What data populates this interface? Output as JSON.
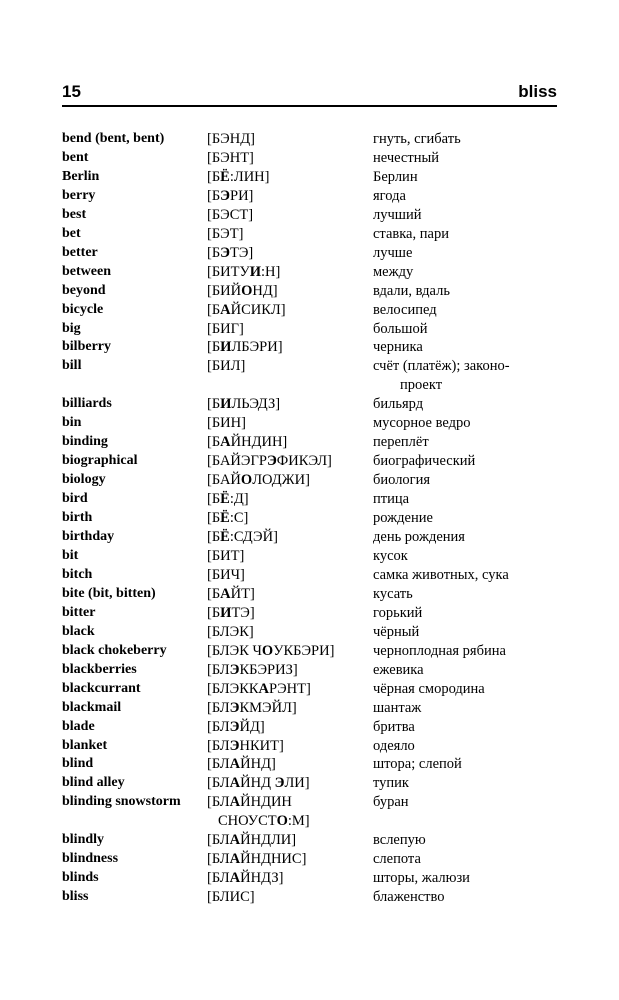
{
  "header": {
    "page_number": "15",
    "guide_word": "bliss"
  },
  "colors": {
    "text": "#000000",
    "background": "#ffffff",
    "rule": "#000000"
  },
  "entries": [
    {
      "word": "bend (bent, bent)",
      "transcription": "[БЭНД]",
      "translation": "гнуть, сгибать"
    },
    {
      "word": "bent",
      "transcription": "[БЭНТ]",
      "translation": "нечестный"
    },
    {
      "word": "Berlin",
      "transcription": "[Б*Ё*:ЛИН]",
      "translation": "Берлин"
    },
    {
      "word": "berry",
      "transcription": "[Б*Э*РИ]",
      "translation": "ягода"
    },
    {
      "word": "best",
      "transcription": "[БЭСТ]",
      "translation": "лучший"
    },
    {
      "word": "bet",
      "transcription": "[БЭТ]",
      "translation": "ставка, пари"
    },
    {
      "word": "better",
      "transcription": "[Б*Э*ТЭ]",
      "translation": "лучше"
    },
    {
      "word": "between",
      "transcription": "[БИТУ*И*:Н]",
      "translation": "между"
    },
    {
      "word": "beyond",
      "transcription": "[БИЙ*О*НД]",
      "translation": "вдали, вдаль"
    },
    {
      "word": "bicycle",
      "transcription": "[Б*А*ЙСИКЛ]",
      "translation": "велосипед"
    },
    {
      "word": "big",
      "transcription": "[БИГ]",
      "translation": "большой"
    },
    {
      "word": "bilberry",
      "transcription": "[Б*И*ЛБЭРИ]",
      "translation": "черника"
    },
    {
      "word": "bill",
      "transcription": "[БИЛ]",
      "translation": "счёт (платёж); законо-\nпроект"
    },
    {
      "word": "billiards",
      "transcription": "[Б*И*ЛЬЭДЗ]",
      "translation": "бильярд"
    },
    {
      "word": "bin",
      "transcription": "[БИН]",
      "translation": "мусорное ведро"
    },
    {
      "word": "binding",
      "transcription": "[Б*А*ЙНДИН]",
      "translation": "переплёт"
    },
    {
      "word": "biographical",
      "transcription": "[БАЙЭГР*Э*ФИКЭЛ]",
      "translation": "биографический"
    },
    {
      "word": "biology",
      "transcription": "[БАЙ*О*ЛОДЖИ]",
      "translation": "биология"
    },
    {
      "word": "bird",
      "transcription": "[Б*Ё*:Д]",
      "translation": "птица"
    },
    {
      "word": "birth",
      "transcription": "[Б*Ё*:С]",
      "translation": "рождение"
    },
    {
      "word": "birthday",
      "transcription": "[Б*Ё*:СДЭЙ]",
      "translation": "день рождения"
    },
    {
      "word": "bit",
      "transcription": "[БИТ]",
      "translation": "кусок"
    },
    {
      "word": "bitch",
      "transcription": "[БИЧ]",
      "translation": "самка животных, сука"
    },
    {
      "word": "bite (bit, bitten)",
      "transcription": "[Б*А*ЙТ]",
      "translation": "кусать"
    },
    {
      "word": "bitter",
      "transcription": "[Б*И*ТЭ]",
      "translation": "горький"
    },
    {
      "word": "black",
      "transcription": "[БЛЭК]",
      "translation": "чёрный"
    },
    {
      "word": "black chokeberry",
      "transcription": "[БЛЭК Ч*О*УКБЭРИ]",
      "translation": "черноплодная рябина"
    },
    {
      "word": "blackberries",
      "transcription": "[БЛ*Э*КБЭРИЗ]",
      "translation": "ежевика"
    },
    {
      "word": "blackcurrant",
      "transcription": "[БЛЭКК*А*РЭНТ]",
      "translation": "чёрная смородина"
    },
    {
      "word": "blackmail",
      "transcription": "[БЛ*Э*КМЭЙЛ]",
      "translation": "шантаж"
    },
    {
      "word": "blade",
      "transcription": "[БЛ*Э*ЙД]",
      "translation": "бритва"
    },
    {
      "word": "blanket",
      "transcription": "[БЛ*Э*НКИТ]",
      "translation": "одеяло"
    },
    {
      "word": "blind",
      "transcription": "[БЛ*А*ЙНД]",
      "translation": "штора; слепой"
    },
    {
      "word": "blind alley",
      "transcription": "[БЛ*А*ЙНД *Э*ЛИ]",
      "translation": "тупик"
    },
    {
      "word": "blinding snowstorm",
      "transcription": "[БЛ*А*ЙНДИН\nСНОУСТ*О*:М]",
      "translation": "буран"
    },
    {
      "word": "blindly",
      "transcription": "[БЛ*А*ЙНДЛИ]",
      "translation": "вслепую"
    },
    {
      "word": "blindness",
      "transcription": "[БЛ*А*ЙНДНИС]",
      "translation": "слепота"
    },
    {
      "word": "blinds",
      "transcription": "[БЛ*А*ЙНДЗ]",
      "translation": "шторы, жалюзи"
    },
    {
      "word": "bliss",
      "transcription": "[БЛИС]",
      "translation": "блаженство"
    }
  ]
}
